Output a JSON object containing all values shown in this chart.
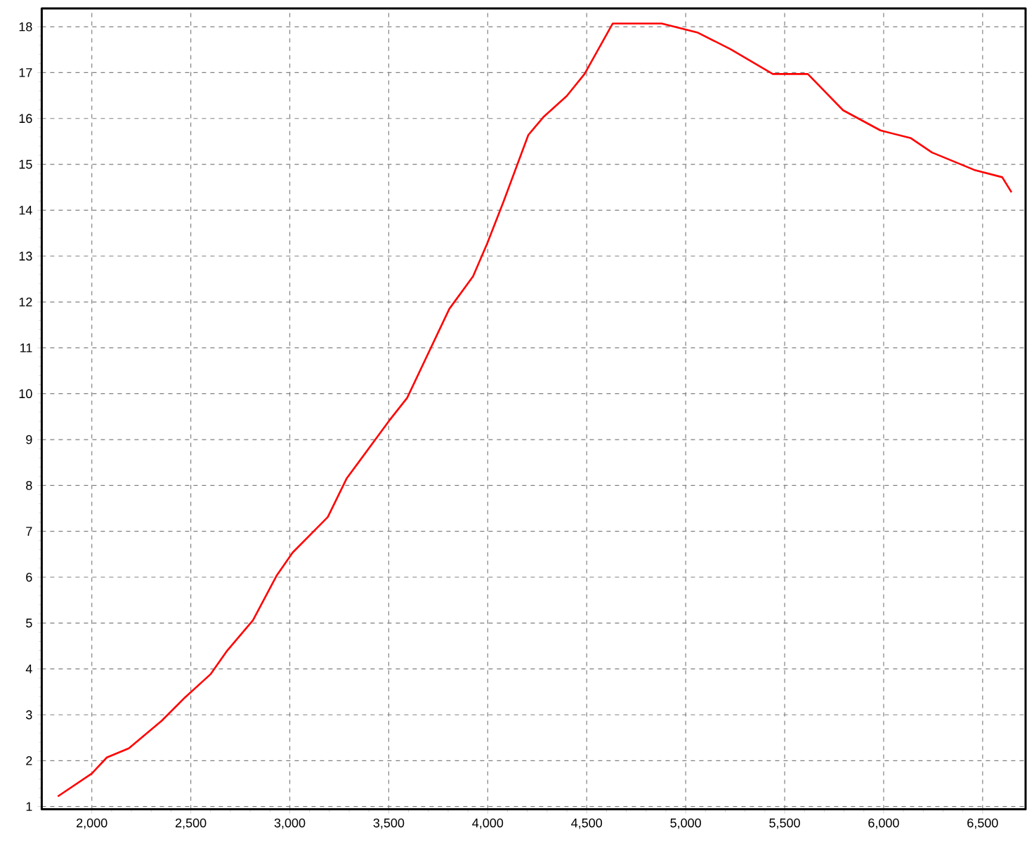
{
  "chart_data": {
    "type": "line",
    "color": "#ff0000",
    "grid": true,
    "x": [
      1828,
      2000,
      2076,
      2187,
      2353,
      2471,
      2601,
      2684,
      2814,
      2933,
      3015,
      3192,
      3287,
      3500,
      3593,
      3806,
      3926,
      3997,
      4080,
      4205,
      4281,
      4399,
      4489,
      4631,
      4879,
      5062,
      5227,
      5440,
      5617,
      5795,
      5984,
      6138,
      6244,
      6457,
      6599,
      6646
    ],
    "values": [
      1.22,
      1.72,
      2.07,
      2.27,
      2.87,
      3.38,
      3.89,
      4.4,
      5.06,
      6.03,
      6.54,
      7.31,
      8.15,
      9.4,
      9.91,
      11.85,
      12.56,
      13.27,
      14.19,
      15.64,
      16.03,
      16.49,
      16.97,
      18.07,
      18.07,
      17.87,
      17.51,
      16.97,
      16.97,
      16.18,
      15.74,
      15.57,
      15.26,
      14.88,
      14.72,
      14.39
    ],
    "xlim": [
      1747,
      6717
    ],
    "ylim": [
      0.94,
      18.4
    ],
    "xticks": [
      {
        "value": 2000,
        "label": "2,000"
      },
      {
        "value": 2500,
        "label": "2,500"
      },
      {
        "value": 3000,
        "label": "3,000"
      },
      {
        "value": 3500,
        "label": "3,500"
      },
      {
        "value": 4000,
        "label": "4,000"
      },
      {
        "value": 4500,
        "label": "4,500"
      },
      {
        "value": 5000,
        "label": "5,000"
      },
      {
        "value": 5500,
        "label": "5,500"
      },
      {
        "value": 6000,
        "label": "6,000"
      },
      {
        "value": 6500,
        "label": "6,500"
      }
    ],
    "yticks": [
      1,
      2,
      3,
      4,
      5,
      6,
      7,
      8,
      9,
      10,
      11,
      12,
      13,
      14,
      15,
      16,
      17,
      18
    ]
  }
}
